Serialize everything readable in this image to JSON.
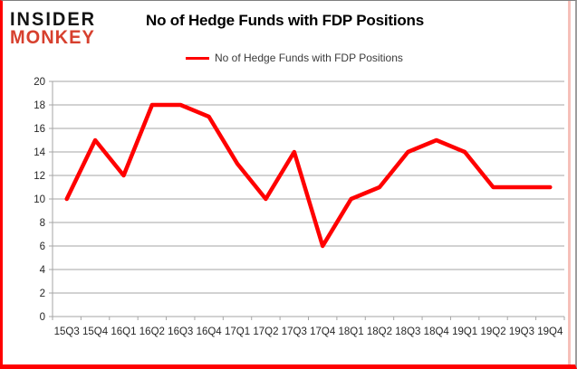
{
  "logo": {
    "line1": "INSIDER",
    "line2": "MONKEY"
  },
  "title": "No of Hedge Funds with FDP Positions",
  "legend": {
    "label": "No of Hedge Funds with FDP Positions"
  },
  "colors": {
    "series": "#ff0000",
    "logo_accent": "#d7402e",
    "grid": "#a6a6a6",
    "axis": "#a6a6a6",
    "axis_text": "#262626",
    "frame_red": "#ff0000",
    "frame_gray": "#7f7f7f"
  },
  "chart_data": {
    "type": "line",
    "title": "No of Hedge Funds with FDP Positions",
    "categories": [
      "15Q3",
      "15Q4",
      "16Q1",
      "16Q2",
      "16Q3",
      "16Q4",
      "17Q1",
      "17Q2",
      "17Q3",
      "17Q4",
      "18Q1",
      "18Q2",
      "18Q3",
      "18Q4",
      "19Q1",
      "19Q2",
      "19Q3",
      "19Q4"
    ],
    "series": [
      {
        "name": "No of Hedge Funds with FDP Positions",
        "color": "#ff0000",
        "values": [
          10,
          15,
          12,
          18,
          18,
          17,
          13,
          10,
          14,
          6,
          10,
          11,
          14,
          15,
          14,
          11,
          11,
          11
        ]
      }
    ],
    "ylim": [
      0,
      20
    ],
    "ytick_step": 2,
    "grid": true,
    "legend_position": "top-center"
  }
}
